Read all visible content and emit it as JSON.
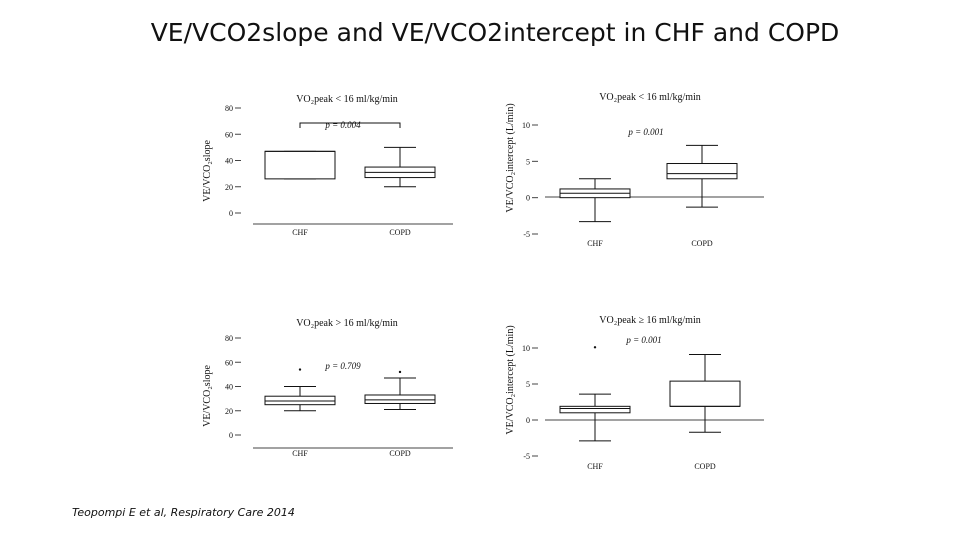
{
  "slide": {
    "title": "VE/VCO2slope and VE/VCO2intercept  in CHF and COPD",
    "citation": "Teopompi E et al, Respiratory Care 2014"
  },
  "chart_data": [
    {
      "type": "box",
      "title": "VO₂peak < 16 ml/kg/min",
      "ylabel": "VE/VCO₂slope",
      "annotation": "p = 0.004",
      "categories": [
        "CHF",
        "COPD"
      ],
      "yticks": [
        0,
        20,
        40,
        60,
        80
      ],
      "ylim": [
        0,
        80
      ],
      "boxes": [
        {
          "min": 26,
          "q1": 26,
          "median": 47,
          "q3": 47,
          "max": 47
        },
        {
          "min": 20,
          "q1": 27,
          "median": 31,
          "q3": 35,
          "max": 50
        }
      ]
    },
    {
      "type": "box",
      "title": "VO₂peak < 16 ml/kg/min",
      "ylabel": "VE/VCO₂intercept (L/min)",
      "annotation": "p = 0.001",
      "categories": [
        "CHF",
        "COPD"
      ],
      "yticks": [
        10,
        5,
        0,
        -5
      ],
      "ylim": [
        -5,
        10
      ],
      "boxes": [
        {
          "min": -3.3,
          "q1": 0,
          "median": 0.6,
          "q3": 1.2,
          "max": 2.6
        },
        {
          "min": -1.3,
          "q1": 2.6,
          "median": 3.3,
          "q3": 4.7,
          "max": 7.2
        }
      ]
    },
    {
      "type": "box",
      "title": "VO₂peak > 16 ml/kg/min",
      "ylabel": "VE/VCO₂slope",
      "annotation": "p = 0.709",
      "categories": [
        "CHF",
        "COPD"
      ],
      "yticks": [
        0,
        20,
        40,
        60,
        80
      ],
      "ylim": [
        0,
        80
      ],
      "boxes": [
        {
          "min": 20,
          "q1": 25,
          "median": 28,
          "q3": 32,
          "max": 40,
          "outliers": [
            54
          ]
        },
        {
          "min": 21,
          "q1": 26,
          "median": 29,
          "q3": 33,
          "max": 47,
          "outliers": [
            52
          ]
        }
      ]
    },
    {
      "type": "box",
      "title": "VO₂peak ≥ 16 ml/kg/min",
      "ylabel": "VE/VCO₂intercept (L/min)",
      "annotation": "p = 0.001",
      "categories": [
        "CHF",
        "COPD"
      ],
      "yticks": [
        10,
        5,
        0,
        -5
      ],
      "ylim": [
        -5,
        10
      ],
      "boxes": [
        {
          "min": -2.9,
          "q1": 1,
          "median": 1.6,
          "q3": 1.9,
          "max": 3.6,
          "outliers": [
            10.1
          ]
        },
        {
          "min": -1.7,
          "q1": 1.9,
          "median": 1.9,
          "q3": 5.4,
          "max": 9.1
        }
      ]
    }
  ]
}
